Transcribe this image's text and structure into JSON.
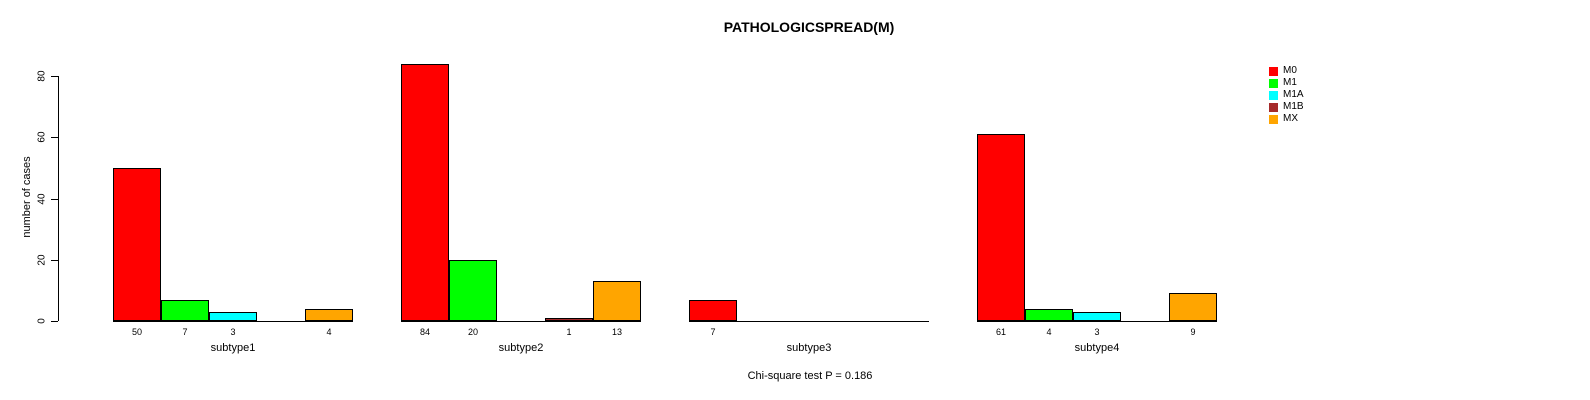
{
  "chart_data": {
    "type": "bar",
    "title": "PATHOLOGICSPREAD(M)",
    "ylabel": "number of cases",
    "xlabel": "",
    "ylim": [
      0,
      80
    ],
    "yticks": [
      0,
      20,
      40,
      60,
      80
    ],
    "grid": false,
    "legend_position": "right",
    "categories": [
      "subtype1",
      "subtype2",
      "subtype3",
      "subtype4"
    ],
    "series": [
      {
        "name": "M0",
        "color": "#FF0000",
        "values": [
          50,
          84,
          7,
          61
        ]
      },
      {
        "name": "M1",
        "color": "#00FF00",
        "values": [
          7,
          20,
          0,
          4
        ]
      },
      {
        "name": "M1A",
        "color": "#00FFFF",
        "values": [
          3,
          0,
          0,
          3
        ]
      },
      {
        "name": "M1B",
        "color": "#A52A2A",
        "values": [
          0,
          1,
          0,
          0
        ]
      },
      {
        "name": "MX",
        "color": "#FFA500",
        "values": [
          4,
          13,
          0,
          9
        ]
      }
    ],
    "bar_value_labels_shown_only_when_positive": true,
    "footnote": "Chi-square test P = 0.186"
  }
}
